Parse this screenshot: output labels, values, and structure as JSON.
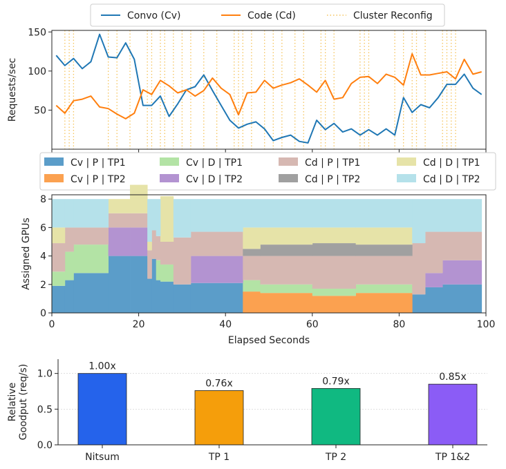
{
  "chart_data": [
    {
      "type": "line",
      "ylabel": "Requests/sec",
      "xlim": [
        0,
        100
      ],
      "ylim": [
        0,
        152
      ],
      "yticks": [
        50,
        100,
        150
      ],
      "legend": {
        "placement": "top-center",
        "entries": [
          {
            "name": "Convo (Cv)",
            "color": "#1f77b4",
            "style": "solid"
          },
          {
            "name": "Code (Cd)",
            "color": "#ff7f0e",
            "style": "solid"
          },
          {
            "name": "Cluster Reconfig",
            "color": "#f5c35a",
            "style": "dotted"
          }
        ]
      },
      "series": [
        {
          "name": "Convo (Cv)",
          "color": "#1f77b4",
          "x": [
            1,
            3,
            5,
            7,
            9,
            11,
            13,
            15,
            17,
            19,
            21,
            23,
            25,
            27,
            29,
            31,
            33,
            35,
            37,
            39,
            41,
            43,
            45,
            47,
            49,
            51,
            53,
            55,
            57,
            59,
            61,
            63,
            65,
            67,
            69,
            71,
            73,
            75,
            77,
            79,
            81,
            83,
            85,
            87,
            89,
            91,
            93,
            95,
            97,
            99
          ],
          "y": [
            120,
            107,
            116,
            103,
            112,
            147,
            118,
            117,
            136,
            115,
            56,
            56,
            68,
            42,
            58,
            76,
            80,
            95,
            75,
            56,
            37,
            27,
            32,
            35,
            26,
            11,
            15,
            18,
            10,
            8,
            37,
            25,
            33,
            22,
            26,
            18,
            25,
            18,
            26,
            18,
            66,
            47,
            57,
            53,
            66,
            83,
            83,
            96,
            78,
            70
          ]
        },
        {
          "name": "Code (Cd)",
          "color": "#ff7f0e",
          "x": [
            1,
            3,
            5,
            7,
            9,
            11,
            13,
            15,
            17,
            19,
            21,
            23,
            25,
            27,
            29,
            31,
            33,
            35,
            37,
            39,
            41,
            43,
            45,
            47,
            49,
            51,
            53,
            55,
            57,
            59,
            61,
            63,
            65,
            67,
            69,
            71,
            73,
            75,
            77,
            79,
            81,
            83,
            85,
            87,
            89,
            91,
            93,
            95,
            97,
            99
          ],
          "y": [
            56,
            46,
            62,
            64,
            68,
            54,
            52,
            45,
            39,
            46,
            76,
            70,
            88,
            81,
            72,
            76,
            68,
            75,
            91,
            78,
            70,
            44,
            72,
            73,
            88,
            78,
            82,
            85,
            90,
            82,
            73,
            88,
            64,
            66,
            84,
            92,
            93,
            84,
            96,
            92,
            82,
            122,
            95,
            95,
            97,
            99,
            90,
            115,
            96,
            99
          ]
        }
      ],
      "reconfig_x": [
        3,
        4,
        5,
        13,
        15,
        18,
        22,
        23,
        25,
        26,
        28,
        30,
        32,
        35,
        38,
        42,
        43,
        44,
        46,
        49,
        51,
        53,
        56,
        58,
        62,
        63,
        65,
        71,
        72,
        73,
        79,
        81,
        83,
        84,
        86,
        90,
        91,
        92,
        93
      ]
    },
    {
      "type": "area",
      "ylabel": "Assigned GPUs",
      "xlabel": "Elapsed Seconds",
      "xlim": [
        0,
        100
      ],
      "ylim": [
        0,
        8.3
      ],
      "xticks": [
        0,
        20,
        40,
        60,
        80,
        100
      ],
      "yticks": [
        0,
        2,
        4,
        6,
        8
      ],
      "legend": {
        "placement": "top",
        "entries": [
          {
            "name": "Cv | P | TP1",
            "color": "#5b9dc9"
          },
          {
            "name": "Cv | D | TP1",
            "color": "#b3e3a5"
          },
          {
            "name": "Cd | P | TP1",
            "color": "#d6b8b2"
          },
          {
            "name": "Cd | D | TP1",
            "color": "#e6e3a8"
          },
          {
            "name": "Cv | P | TP2",
            "color": "#fba150"
          },
          {
            "name": "Cv | D | TP2",
            "color": "#b393d1"
          },
          {
            "name": "Cd | P | TP2",
            "color": "#a0a0a0"
          },
          {
            "name": "Cd | D | TP2",
            "color": "#b5e1ea"
          }
        ]
      },
      "x_edges": [
        0,
        3,
        5,
        13,
        18,
        22,
        23,
        24,
        25,
        28,
        32,
        44,
        48,
        60,
        70,
        83,
        86,
        90,
        99
      ],
      "series": [
        {
          "name": "Cv | P | TP1",
          "color": "#5b9dc9",
          "values": [
            1.9,
            2.3,
            2.8,
            4.0,
            4.0,
            2.4,
            3.8,
            2.3,
            2.2,
            2.0,
            2.1,
            0,
            0,
            0,
            0,
            1.3,
            1.8,
            2.0
          ]
        },
        {
          "name": "Cv | P | TP2",
          "color": "#fba150",
          "values": [
            0,
            0,
            0,
            0,
            0,
            0,
            0,
            0,
            0,
            0,
            0,
            1.5,
            1.4,
            1.2,
            1.4,
            0,
            0,
            0
          ]
        },
        {
          "name": "Cv | D | TP1",
          "color": "#b3e3a5",
          "values": [
            1.0,
            2.0,
            2.0,
            0,
            0,
            0,
            0,
            1.4,
            1.2,
            0,
            0,
            0.8,
            0.6,
            0.5,
            0.6,
            0,
            0,
            0
          ]
        },
        {
          "name": "Cv | D | TP2",
          "color": "#b393d1",
          "values": [
            0,
            0,
            0,
            2.0,
            2.0,
            0,
            0,
            0,
            0,
            0,
            1.9,
            0,
            0,
            0,
            0,
            0,
            1.0,
            1.7
          ]
        },
        {
          "name": "Cd | P | TP1",
          "color": "#d6b8b2",
          "values": [
            2.0,
            1.7,
            1.2,
            1.0,
            1.0,
            2.0,
            2.0,
            1.7,
            1.6,
            3.3,
            1.7,
            1.7,
            2.0,
            2.3,
            2.0,
            3.6,
            2.9,
            2.0
          ]
        },
        {
          "name": "Cd | P | TP2",
          "color": "#a0a0a0",
          "values": [
            0,
            0,
            0,
            0,
            0,
            0,
            0,
            0,
            0,
            0,
            0,
            0.5,
            0.8,
            0.9,
            0.8,
            0,
            0,
            0
          ]
        },
        {
          "name": "Cd | D | TP1",
          "color": "#e6e3a8",
          "values": [
            1.1,
            0,
            0,
            1.0,
            2.0,
            0.6,
            0,
            0,
            3.2,
            0,
            0,
            1.5,
            1.2,
            1.1,
            1.2,
            0,
            0,
            0
          ]
        },
        {
          "name": "Cd | D | TP2",
          "color": "#b5e1ea",
          "values": [
            2.0,
            2.0,
            2.0,
            0,
            0,
            3.0,
            2.2,
            2.6,
            0,
            2.7,
            2.3,
            2.0,
            2.0,
            2.0,
            2.0,
            3.1,
            2.3,
            2.3
          ]
        }
      ]
    },
    {
      "type": "bar",
      "ylabel": "Relative\nGoodput (req/s)",
      "ylim": [
        0,
        1.2
      ],
      "yticks": [
        0.0,
        0.5,
        1.0
      ],
      "categories": [
        "Nitsum",
        "TP 1",
        "TP 2",
        "TP 1&2"
      ],
      "values": [
        1.0,
        0.76,
        0.79,
        0.85
      ],
      "labels": [
        "1.00x",
        "0.76x",
        "0.79x",
        "0.85x"
      ],
      "colors": [
        "#2563eb",
        "#f59e0b",
        "#10b981",
        "#8b5cf6"
      ]
    }
  ]
}
